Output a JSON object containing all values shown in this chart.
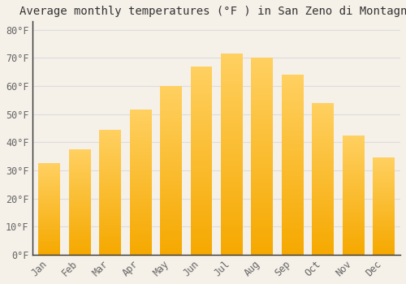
{
  "title": "Average monthly temperatures (°F ) in San Zeno di Montagna",
  "months": [
    "Jan",
    "Feb",
    "Mar",
    "Apr",
    "May",
    "Jun",
    "Jul",
    "Aug",
    "Sep",
    "Oct",
    "Nov",
    "Dec"
  ],
  "values": [
    32.5,
    37.5,
    44.5,
    51.5,
    60.0,
    67.0,
    71.5,
    70.0,
    64.0,
    54.0,
    42.5,
    34.5
  ],
  "bar_color_bottom": "#F5A800",
  "bar_color_top": "#FFD060",
  "background_color": "#F5F0E8",
  "grid_color": "#DDDDDD",
  "ylim": [
    0,
    83
  ],
  "yticks": [
    0,
    10,
    20,
    30,
    40,
    50,
    60,
    70,
    80
  ],
  "ytick_labels": [
    "0°F",
    "10°F",
    "20°F",
    "30°F",
    "40°F",
    "50°F",
    "60°F",
    "70°F",
    "80°F"
  ],
  "title_fontsize": 10,
  "tick_fontsize": 8.5,
  "bar_width": 0.72
}
